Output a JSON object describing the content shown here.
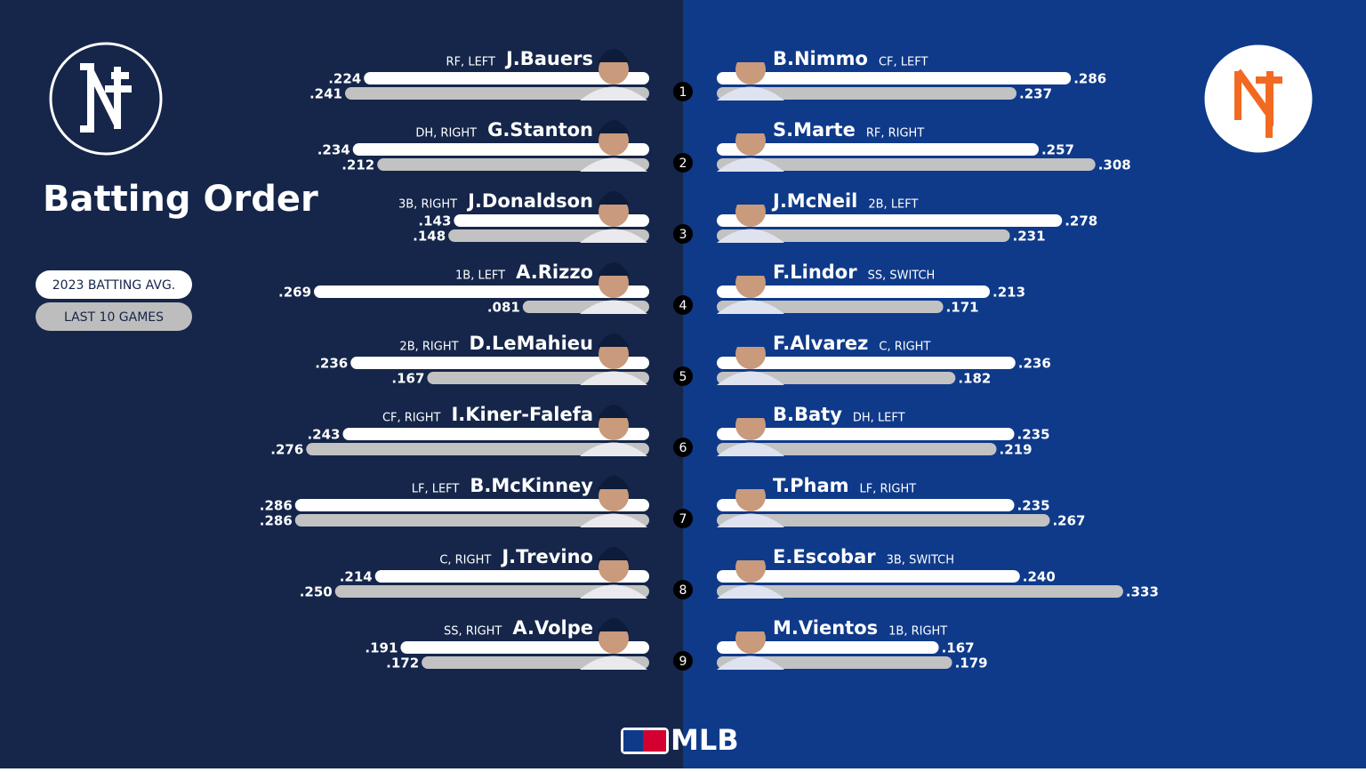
{
  "title": "Batting Order",
  "legend": {
    "avg": "2023 BATTING AVG.",
    "last10": "LAST 10 GAMES"
  },
  "order": [
    1,
    2,
    3,
    4,
    5,
    6,
    7,
    8,
    9
  ],
  "footer": "MLB",
  "teams": [
    {
      "players": [
        {
          "name": "J.Bauers",
          "pos": "RF, LEFT"
        },
        {
          "name": "G.Stanton",
          "pos": "DH, RIGHT"
        },
        {
          "name": "J.Donaldson",
          "pos": "3B, RIGHT"
        },
        {
          "name": "A.Rizzo",
          "pos": "1B, LEFT"
        },
        {
          "name": "D.LeMahieu",
          "pos": "2B, RIGHT"
        },
        {
          "name": "I.Kiner-Falefa",
          "pos": "CF, RIGHT"
        },
        {
          "name": "B.McKinney",
          "pos": "LF, LEFT"
        },
        {
          "name": "J.Trevino",
          "pos": "C, RIGHT"
        },
        {
          "name": "A.Volpe",
          "pos": "SS, RIGHT"
        }
      ],
      "avg": {
        "values": [
          0.224,
          0.234,
          0.143,
          0.269,
          0.236,
          0.243,
          0.286,
          0.214,
          0.191
        ],
        "value_labels": [
          ".224",
          ".234",
          ".143",
          ".269",
          ".236",
          ".243",
          ".286",
          ".214",
          ".191"
        ]
      },
      "last10": {
        "values": [
          0.241,
          0.212,
          0.148,
          0.081,
          0.167,
          0.276,
          0.286,
          0.25,
          0.172
        ],
        "value_labels": [
          ".241",
          ".212",
          ".148",
          ".081",
          ".167",
          ".276",
          ".286",
          ".250",
          ".172"
        ]
      }
    },
    {
      "players": [
        {
          "name": "B.Nimmo",
          "pos": "CF, LEFT"
        },
        {
          "name": "S.Marte",
          "pos": "RF, RIGHT"
        },
        {
          "name": "J.McNeil",
          "pos": "2B, LEFT"
        },
        {
          "name": "F.Lindor",
          "pos": "SS, SWITCH"
        },
        {
          "name": "F.Alvarez",
          "pos": "C, RIGHT"
        },
        {
          "name": "B.Baty",
          "pos": "DH, LEFT"
        },
        {
          "name": "T.Pham",
          "pos": "LF, RIGHT"
        },
        {
          "name": "E.Escobar",
          "pos": "3B, SWITCH"
        },
        {
          "name": "M.Vientos",
          "pos": "1B, RIGHT"
        }
      ],
      "avg": {
        "values": [
          0.286,
          0.257,
          0.278,
          0.213,
          0.236,
          0.235,
          0.235,
          0.24,
          0.167
        ],
        "value_labels": [
          ".286",
          ".257",
          ".278",
          ".213",
          ".236",
          ".235",
          ".235",
          ".240",
          ".167"
        ]
      },
      "last10": {
        "values": [
          0.237,
          0.308,
          0.231,
          0.171,
          0.182,
          0.219,
          0.267,
          0.333,
          0.179
        ],
        "value_labels": [
          ".237",
          ".308",
          ".231",
          ".171",
          ".182",
          ".219",
          ".267",
          ".333",
          ".179"
        ]
      }
    }
  ]
}
